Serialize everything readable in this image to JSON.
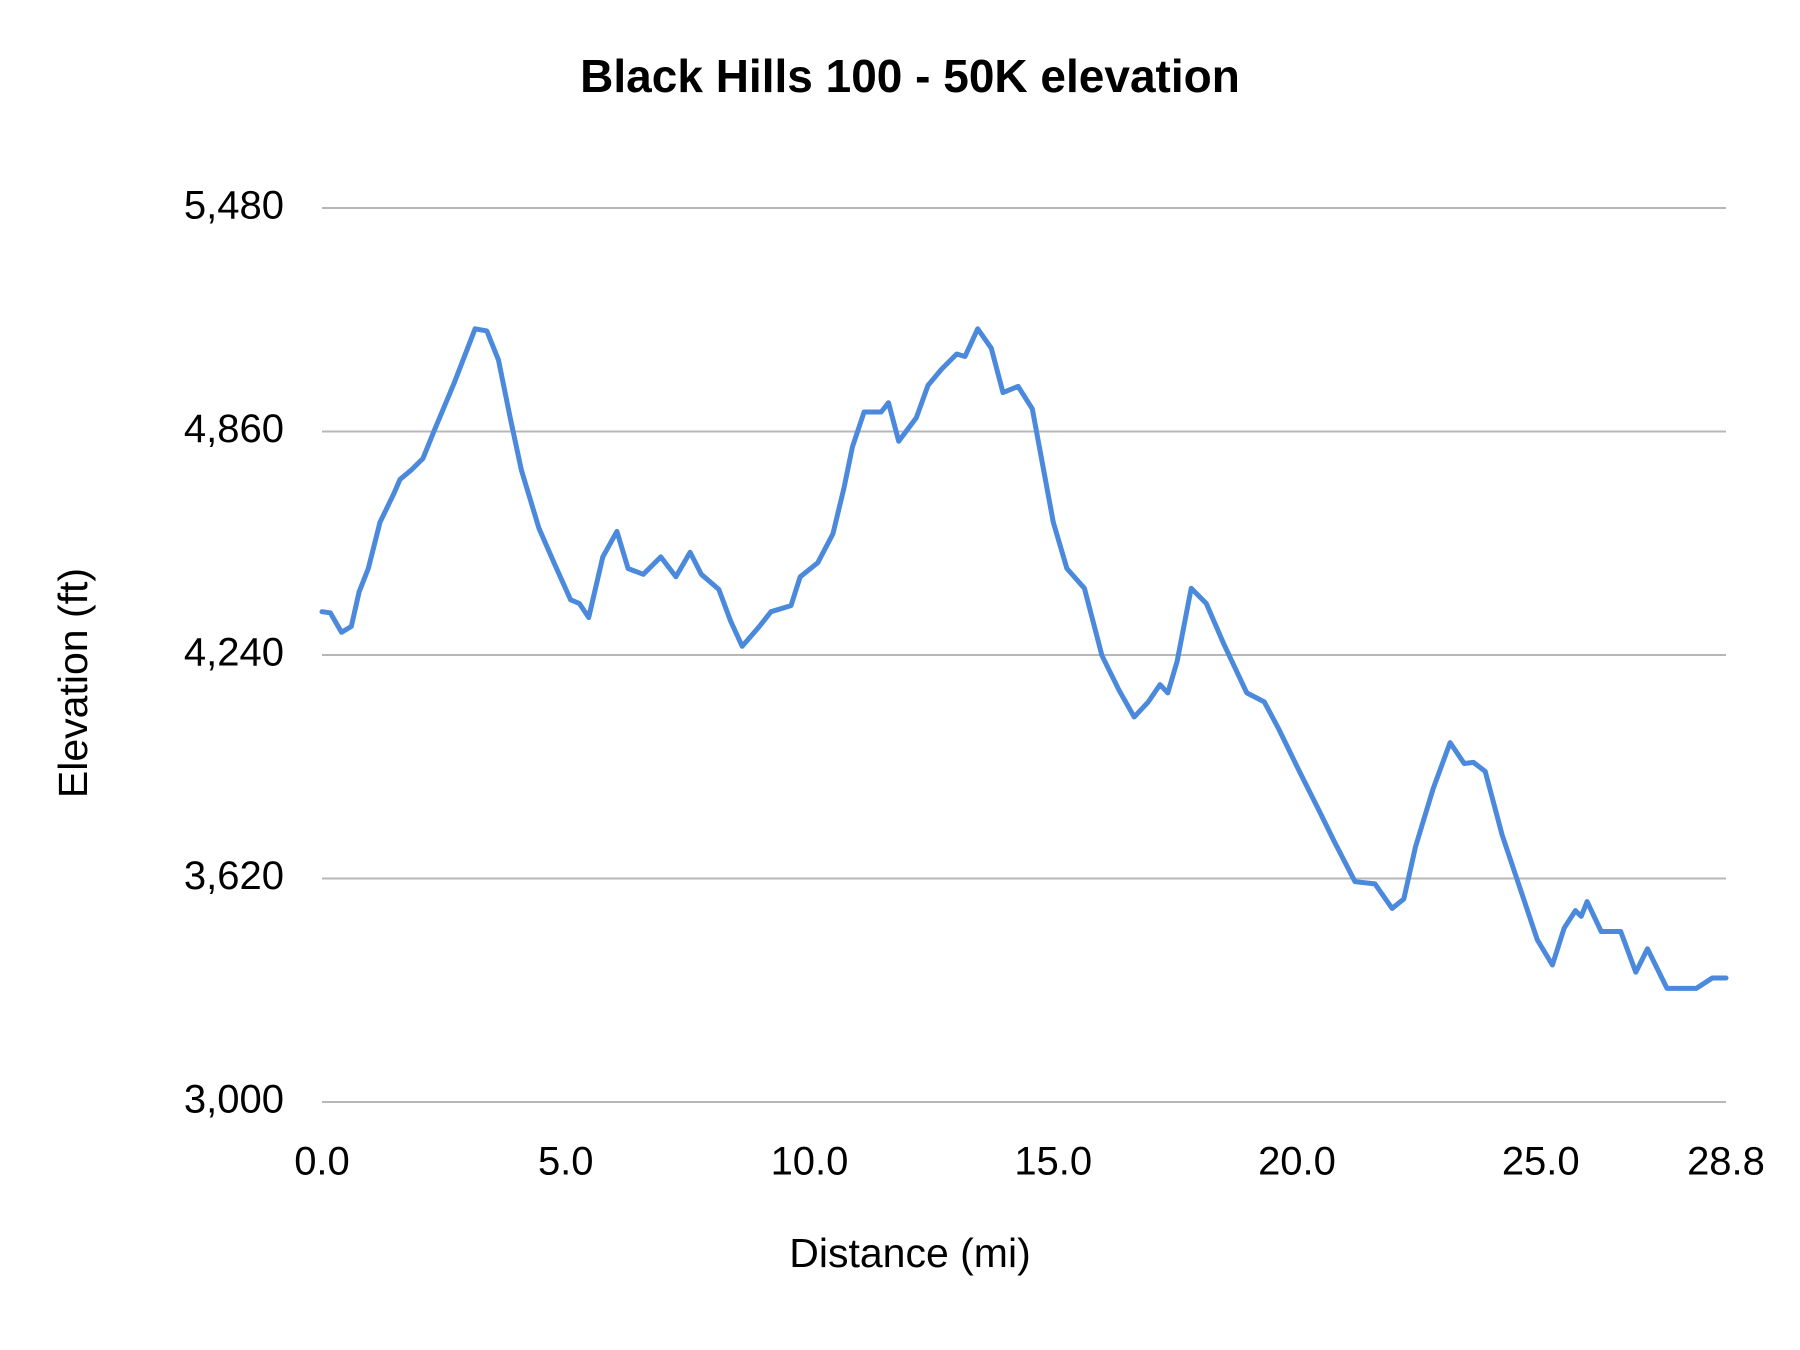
{
  "chart_data": {
    "type": "line",
    "title": "Black Hills 100 - 50K elevation",
    "x_label": "Distance (mi)",
    "y_label": "Elevation (ft)",
    "x": [
      0,
      0.17,
      0.4,
      0.6,
      0.76,
      0.95,
      1.19,
      1.48,
      1.6,
      1.83,
      2.07,
      2.31,
      2.71,
      3.14,
      3.38,
      3.62,
      3.86,
      4.09,
      4.45,
      4.76,
      5.1,
      5.28,
      5.47,
      5.76,
      6.05,
      6.28,
      6.59,
      6.95,
      7.26,
      7.55,
      7.78,
      8.14,
      8.38,
      8.62,
      8.97,
      9.21,
      9.62,
      9.81,
      10.17,
      10.48,
      10.71,
      10.88,
      11.12,
      11.47,
      11.62,
      11.83,
      12.19,
      12.43,
      12.71,
      13.02,
      13.19,
      13.45,
      13.73,
      13.97,
      14.28,
      14.57,
      14.76,
      15.0,
      15.28,
      15.64,
      16.0,
      16.35,
      16.66,
      16.95,
      17.19,
      17.35,
      17.54,
      17.83,
      18.14,
      18.5,
      18.97,
      19.33,
      19.62,
      20.05,
      20.47,
      20.76,
      21.19,
      21.6,
      21.95,
      22.19,
      22.43,
      22.79,
      23.14,
      23.43,
      23.62,
      23.86,
      24.21,
      24.57,
      24.93,
      25.24,
      25.48,
      25.71,
      25.83,
      25.95,
      26.24,
      26.64,
      26.95,
      27.19,
      27.59,
      28.19,
      28.52,
      28.8
    ],
    "series": [
      {
        "name": "Elevation",
        "color": "#4a89dc",
        "values": [
          4360,
          4357,
          4303,
          4319,
          4415,
          4480,
          4608,
          4689,
          4727,
          4753,
          4785,
          4865,
          4994,
          5145,
          5139,
          5058,
          4898,
          4753,
          4592,
          4496,
          4393,
          4383,
          4344,
          4512,
          4583,
          4480,
          4464,
          4512,
          4457,
          4525,
          4464,
          4422,
          4335,
          4264,
          4319,
          4360,
          4377,
          4457,
          4496,
          4576,
          4705,
          4817,
          4914,
          4914,
          4940,
          4833,
          4898,
          4988,
          5033,
          5075,
          5068,
          5145,
          5091,
          4968,
          4985,
          4923,
          4785,
          4608,
          4480,
          4425,
          4238,
          4142,
          4068,
          4110,
          4158,
          4135,
          4222,
          4425,
          4383,
          4270,
          4135,
          4110,
          4036,
          3917,
          3804,
          3724,
          3611,
          3605,
          3537,
          3563,
          3708,
          3868,
          3997,
          3939,
          3942,
          3917,
          3740,
          3595,
          3450,
          3380,
          3482,
          3531,
          3515,
          3556,
          3473,
          3473,
          3360,
          3425,
          3315,
          3315,
          3344,
          3344
        ]
      }
    ],
    "xlim": [
      0,
      28.8
    ],
    "xticks": [
      {
        "value": 0,
        "label": "0.0"
      },
      {
        "value": 5,
        "label": "5.0"
      },
      {
        "value": 10,
        "label": "10.0"
      },
      {
        "value": 15,
        "label": "15.0"
      },
      {
        "value": 20,
        "label": "20.0"
      },
      {
        "value": 25,
        "label": "25.0"
      },
      28.8
    ],
    "ylim": [
      3000,
      5480
    ],
    "yticks": [
      {
        "value": 3000,
        "label": "3,000"
      },
      {
        "value": 3620,
        "label": "3,620"
      },
      {
        "value": 4240,
        "label": "4,240"
      },
      {
        "value": 4860,
        "label": "4,860"
      },
      {
        "value": 5480,
        "label": "5,480"
      }
    ],
    "grid": true
  }
}
